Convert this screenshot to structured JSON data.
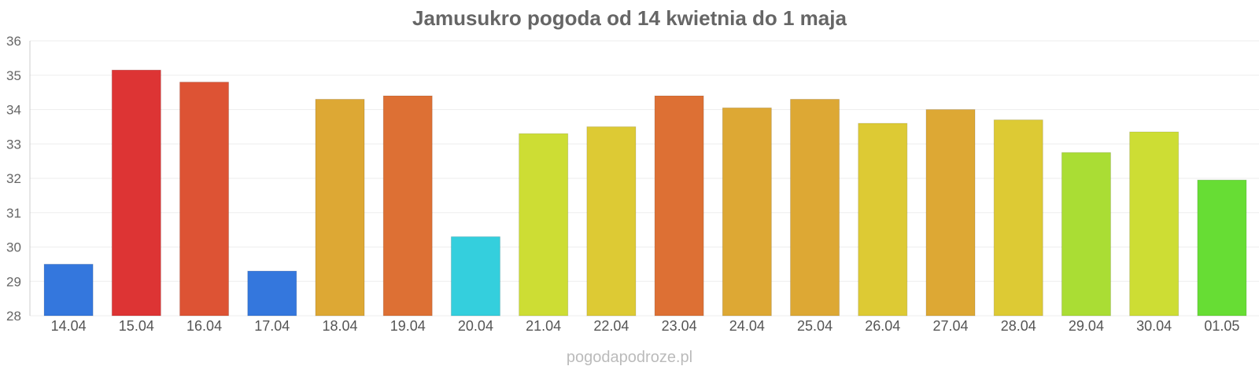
{
  "chart_data": {
    "type": "bar",
    "title": "Jamusukro pogoda od 14 kwietnia do 1 maja",
    "categories": [
      "14.04",
      "15.04",
      "16.04",
      "17.04",
      "18.04",
      "19.04",
      "20.04",
      "21.04",
      "22.04",
      "23.04",
      "24.04",
      "25.04",
      "26.04",
      "27.04",
      "28.04",
      "29.04",
      "30.04",
      "01.05"
    ],
    "values": [
      29.5,
      35.15,
      34.8,
      29.3,
      34.3,
      34.4,
      30.3,
      33.3,
      33.5,
      34.4,
      34.05,
      34.3,
      33.6,
      34.0,
      33.7,
      32.75,
      33.35,
      31.95
    ],
    "colors": [
      "#3477dd",
      "#dd3434",
      "#dd5334",
      "#3477dd",
      "#dda834",
      "#dd7034",
      "#34cfdd",
      "#cddd34",
      "#ddca34",
      "#dd7034",
      "#dda834",
      "#dda834",
      "#ddca34",
      "#dda834",
      "#ddca34",
      "#aadd34",
      "#cddd34",
      "#67dd34"
    ],
    "ylim": [
      28,
      36
    ],
    "yticks": [
      28,
      29,
      30,
      31,
      32,
      33,
      34,
      35,
      36
    ],
    "xlabel": "",
    "ylabel": "",
    "grid": true
  },
  "watermark": "pogodapodroze.pl"
}
